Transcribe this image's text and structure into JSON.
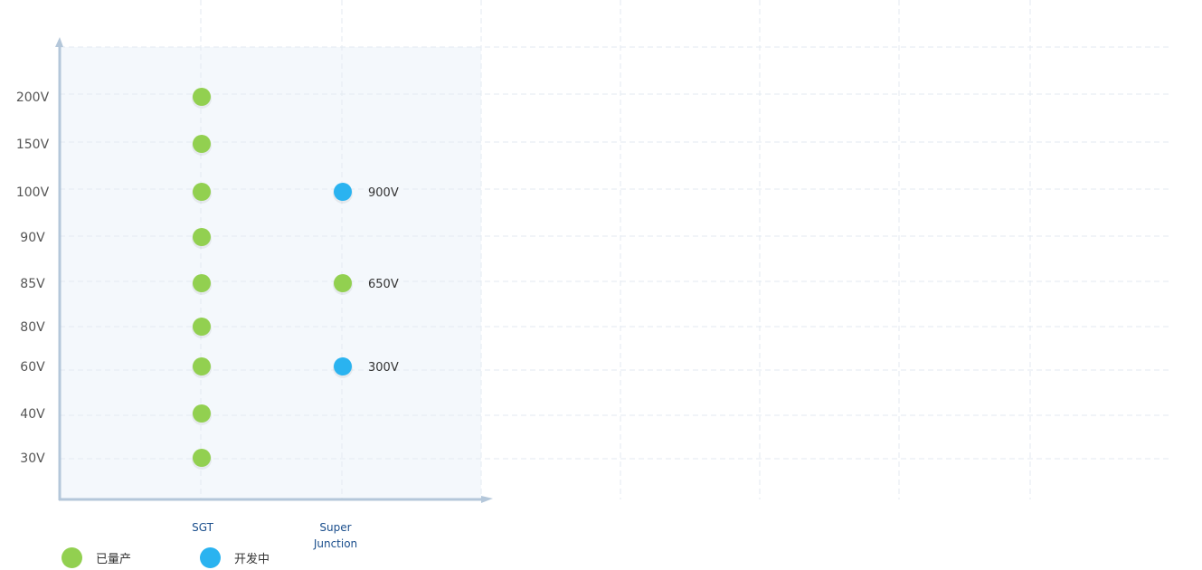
{
  "chart_data": {
    "type": "scatter",
    "categories": [
      "SGT",
      "Super Junction"
    ],
    "y_categories": [
      "30V",
      "40V",
      "60V",
      "80V",
      "85V",
      "90V",
      "100V",
      "150V",
      "200V"
    ],
    "series": [
      {
        "name": "已量产",
        "color": "#92d050",
        "points": [
          {
            "x": "SGT",
            "y": "200V"
          },
          {
            "x": "SGT",
            "y": "150V"
          },
          {
            "x": "SGT",
            "y": "100V"
          },
          {
            "x": "SGT",
            "y": "90V"
          },
          {
            "x": "SGT",
            "y": "85V"
          },
          {
            "x": "SGT",
            "y": "80V"
          },
          {
            "x": "SGT",
            "y": "60V"
          },
          {
            "x": "SGT",
            "y": "40V"
          },
          {
            "x": "SGT",
            "y": "30V"
          },
          {
            "x": "Super Junction",
            "y": "85V",
            "label": "650V"
          }
        ]
      },
      {
        "name": "开发中",
        "color": "#2ab3f0",
        "points": [
          {
            "x": "Super Junction",
            "y": "100V",
            "label": "900V"
          },
          {
            "x": "Super Junction",
            "y": "60V",
            "label": "300V"
          }
        ]
      }
    ],
    "grid": true,
    "legend": "bottom-left"
  }
}
